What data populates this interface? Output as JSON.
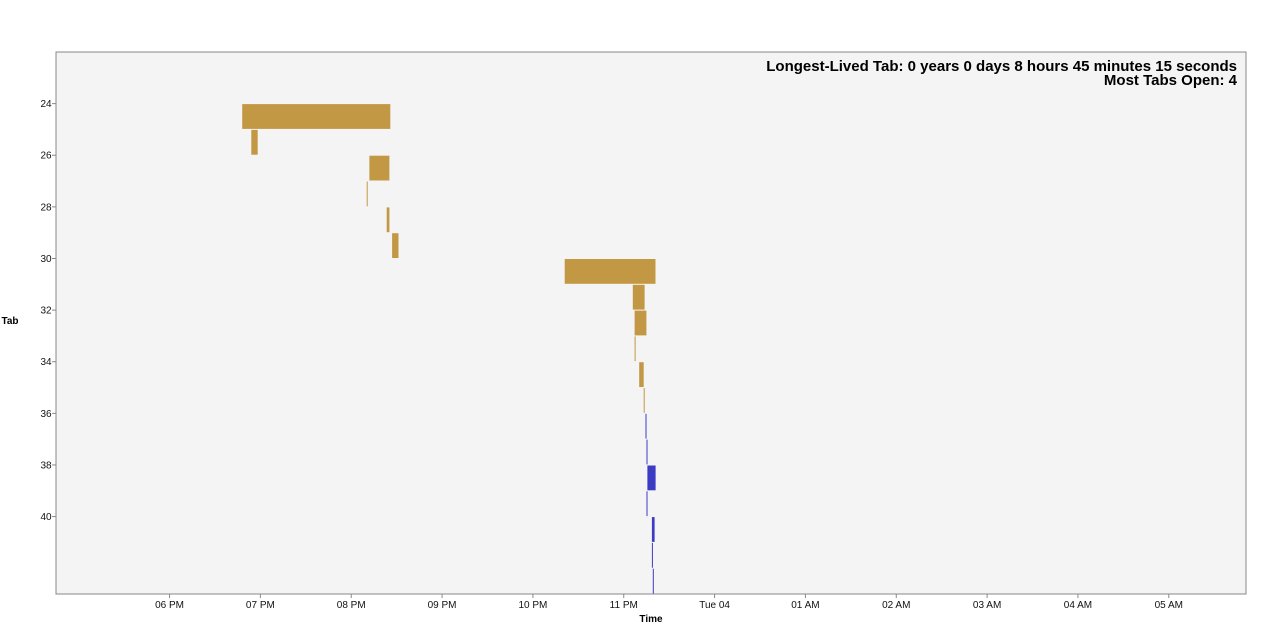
{
  "chart_data": {
    "type": "bar",
    "orientation": "horizontal-timeline",
    "xlabel": "Time",
    "ylabel": "Tab",
    "annotations": [
      "Longest-Lived Tab: 0 years 0 days 8 hours 45 minutes 15 seconds",
      "Most Tabs Open: 4"
    ],
    "x_ticks": [
      "06 PM",
      "07 PM",
      "08 PM",
      "09 PM",
      "10 PM",
      "11 PM",
      "Tue 04",
      "01 AM",
      "02 AM",
      "03 AM",
      "04 AM",
      "05 AM"
    ],
    "x_tick_hours": [
      18,
      19,
      20,
      21,
      22,
      23,
      24,
      25,
      26,
      27,
      28,
      29
    ],
    "xlim_hours": [
      16.75,
      29.85
    ],
    "y_ticks": [
      24,
      26,
      28,
      30,
      32,
      34,
      36,
      38,
      40
    ],
    "ylim": [
      22,
      43
    ],
    "grid": false,
    "series": [
      {
        "color": "#c39845",
        "bars": [
          {
            "tab": 24,
            "start": 18.8,
            "end": 20.43
          },
          {
            "tab": 25,
            "start": 18.9,
            "end": 18.97
          },
          {
            "tab": 26,
            "start": 20.2,
            "end": 20.42
          },
          {
            "tab": 27,
            "start": 20.17,
            "end": 20.18
          },
          {
            "tab": 28,
            "start": 20.39,
            "end": 20.42
          },
          {
            "tab": 29,
            "start": 20.45,
            "end": 20.52
          },
          {
            "tab": 30,
            "start": 22.35,
            "end": 23.35
          },
          {
            "tab": 31,
            "start": 23.1,
            "end": 23.23
          },
          {
            "tab": 32,
            "start": 23.12,
            "end": 23.25
          },
          {
            "tab": 33,
            "start": 23.12,
            "end": 23.13
          },
          {
            "tab": 34,
            "start": 23.17,
            "end": 23.22
          },
          {
            "tab": 35,
            "start": 23.22,
            "end": 23.23
          }
        ]
      },
      {
        "color": "#3b3bc4",
        "bars": [
          {
            "tab": 36,
            "start": 23.24,
            "end": 23.25
          },
          {
            "tab": 37,
            "start": 23.25,
            "end": 23.26
          },
          {
            "tab": 38,
            "start": 23.26,
            "end": 23.35
          },
          {
            "tab": 39,
            "start": 23.25,
            "end": 23.26
          },
          {
            "tab": 40,
            "start": 23.31,
            "end": 23.34
          },
          {
            "tab": 41,
            "start": 23.31,
            "end": 23.32
          },
          {
            "tab": 42,
            "start": 23.32,
            "end": 23.33
          }
        ]
      }
    ],
    "colors": {
      "plot_background": "#f4f4f4",
      "plot_border": "#888888"
    }
  }
}
